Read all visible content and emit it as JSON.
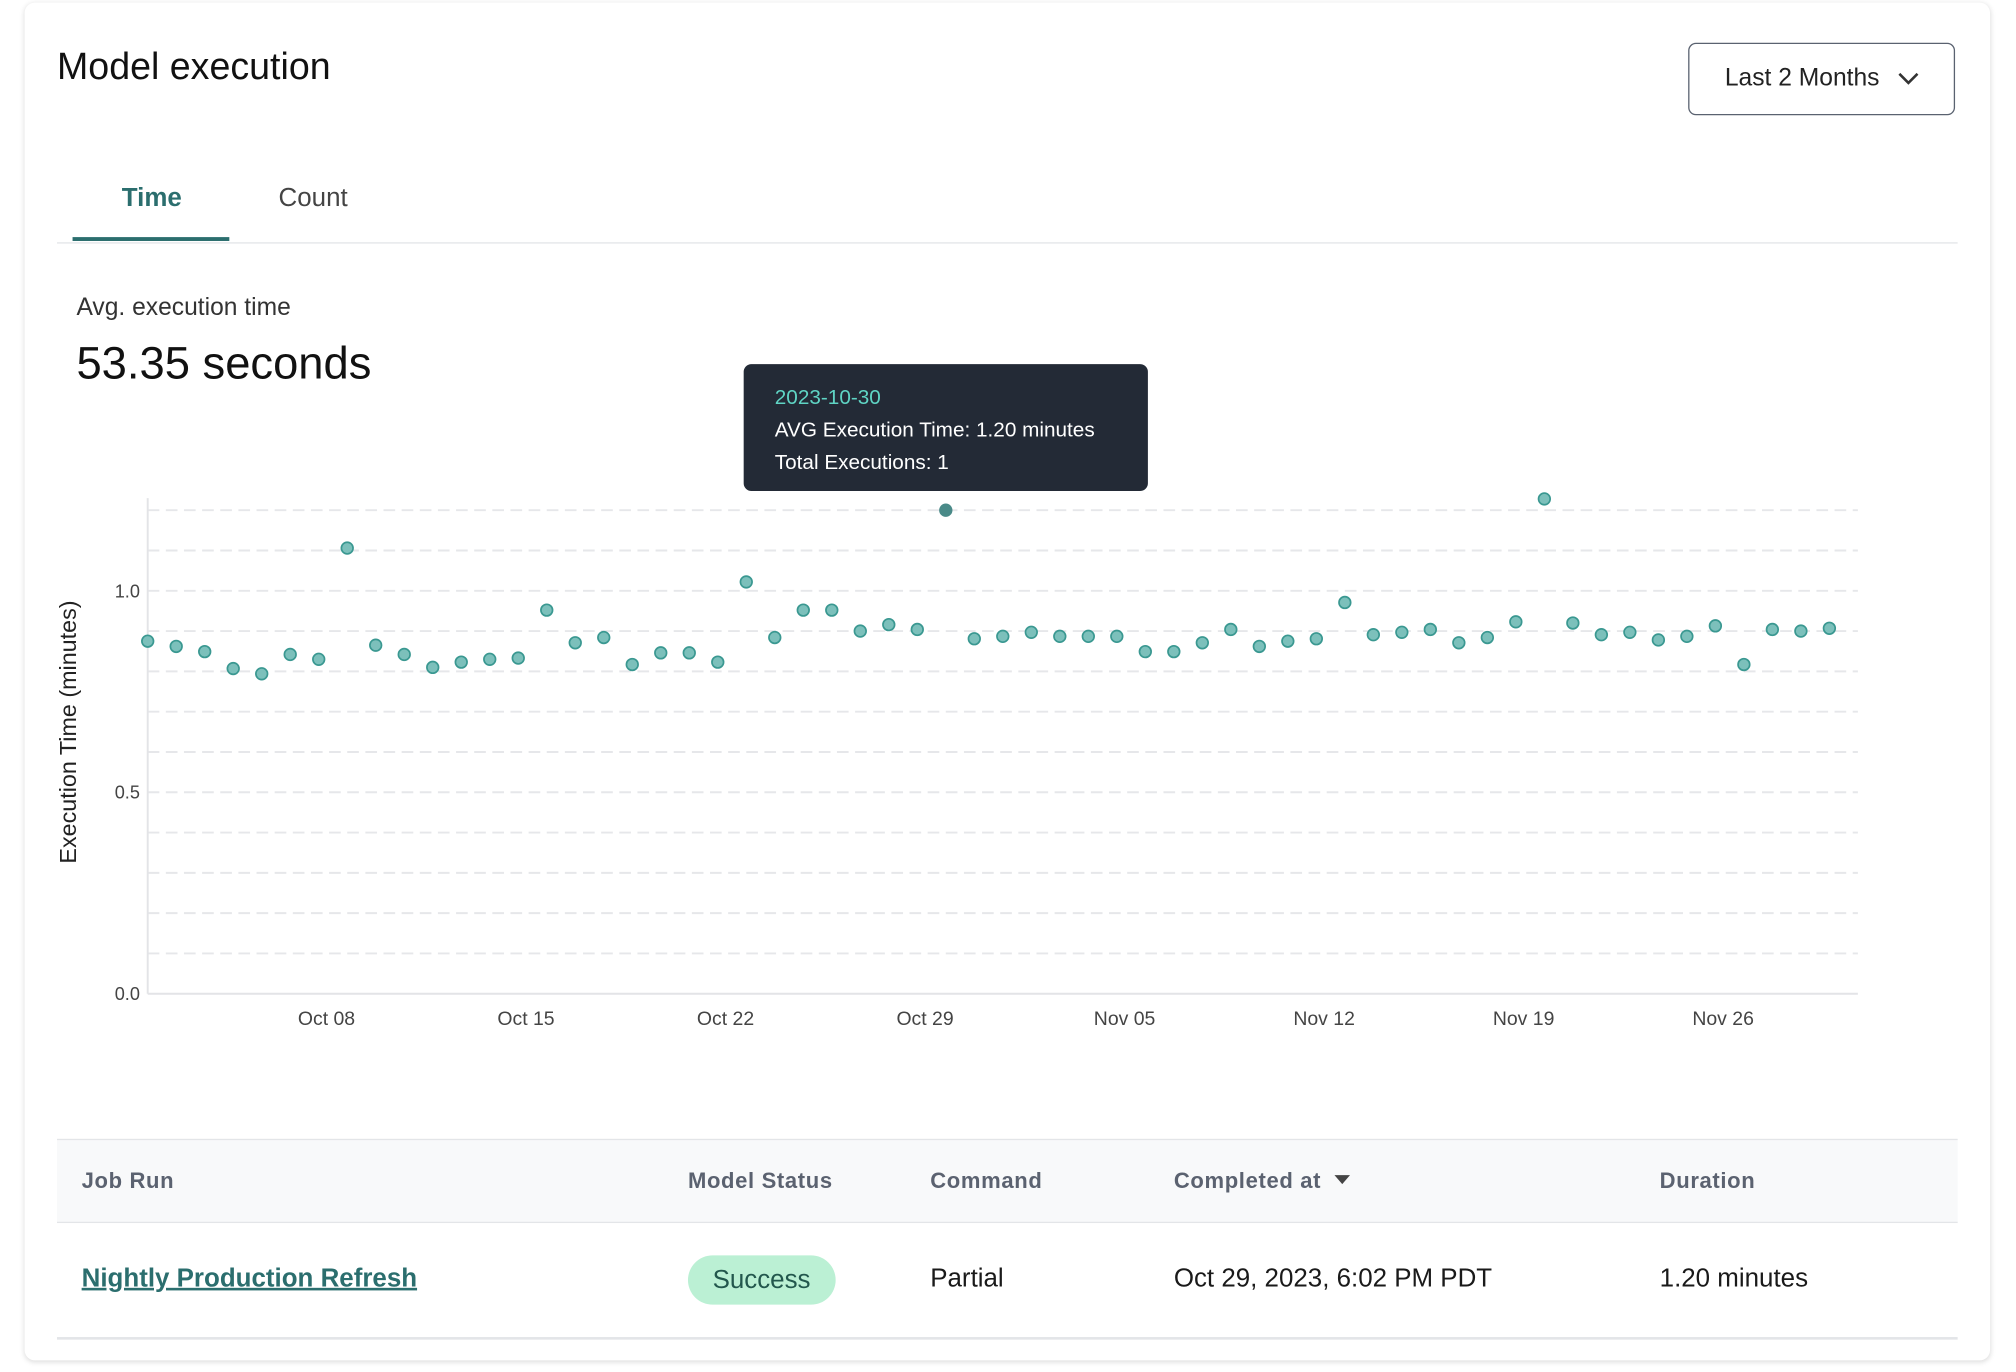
{
  "header": {
    "title": "Model execution",
    "range_select": "Last 2 Months"
  },
  "tabs": [
    {
      "label": "Time",
      "active": true
    },
    {
      "label": "Count",
      "active": false
    }
  ],
  "summary": {
    "label": "Avg. execution time",
    "value": "53.35 seconds"
  },
  "tooltip": {
    "date": "2023-10-30",
    "line1": "AVG Execution Time: 1.20 minutes",
    "line2": "Total Executions: 1"
  },
  "colors": {
    "accent": "#2b6e6e",
    "point_fill": "#7cc0bb",
    "point_stroke": "#3a9891",
    "point_active": "#4a8a88",
    "tooltip_bg": "#232a36"
  },
  "chart_data": {
    "type": "scatter",
    "ylabel": "Execution Time (minutes)",
    "ylim": [
      0,
      1.23
    ],
    "yticks": [
      "0.0",
      "0.5",
      "1.0"
    ],
    "grid": true,
    "xticks": [
      {
        "date": "2023-10-08",
        "label": "Oct 08"
      },
      {
        "date": "2023-10-15",
        "label": "Oct 15"
      },
      {
        "date": "2023-10-22",
        "label": "Oct 22"
      },
      {
        "date": "2023-10-29",
        "label": "Oct 29"
      },
      {
        "date": "2023-11-05",
        "label": "Nov 05"
      },
      {
        "date": "2023-11-12",
        "label": "Nov 12"
      },
      {
        "date": "2023-11-19",
        "label": "Nov 19"
      },
      {
        "date": "2023-11-26",
        "label": "Nov 26"
      }
    ],
    "highlighted": "2023-10-30",
    "points": [
      [
        "2023-10-02",
        0.875
      ],
      [
        "2023-10-03",
        0.862
      ],
      [
        "2023-10-04",
        0.849
      ],
      [
        "2023-10-05",
        0.807
      ],
      [
        "2023-10-06",
        0.794
      ],
      [
        "2023-10-07",
        0.842
      ],
      [
        "2023-10-08",
        0.83
      ],
      [
        "2023-10-09",
        1.106
      ],
      [
        "2023-10-10",
        0.865
      ],
      [
        "2023-10-11",
        0.842
      ],
      [
        "2023-10-12",
        0.81
      ],
      [
        "2023-10-13",
        0.823
      ],
      [
        "2023-10-14",
        0.83
      ],
      [
        "2023-10-15",
        0.833
      ],
      [
        "2023-10-16",
        0.952
      ],
      [
        "2023-10-17",
        0.871
      ],
      [
        "2023-10-18",
        0.884
      ],
      [
        "2023-10-19",
        0.817
      ],
      [
        "2023-10-20",
        0.846
      ],
      [
        "2023-10-21",
        0.846
      ],
      [
        "2023-10-22",
        0.823
      ],
      [
        "2023-10-23",
        1.022
      ],
      [
        "2023-10-24",
        0.884
      ],
      [
        "2023-10-25",
        0.952
      ],
      [
        "2023-10-26",
        0.952
      ],
      [
        "2023-10-27",
        0.9
      ],
      [
        "2023-10-28",
        0.916
      ],
      [
        "2023-10-29",
        0.904
      ],
      [
        "2023-10-30",
        1.2
      ],
      [
        "2023-10-31",
        0.881
      ],
      [
        "2023-11-01",
        0.887
      ],
      [
        "2023-11-02",
        0.897
      ],
      [
        "2023-11-03",
        0.887
      ],
      [
        "2023-11-04",
        0.887
      ],
      [
        "2023-11-05",
        0.887
      ],
      [
        "2023-11-06",
        0.849
      ],
      [
        "2023-11-07",
        0.849
      ],
      [
        "2023-11-08",
        0.871
      ],
      [
        "2023-11-09",
        0.904
      ],
      [
        "2023-11-10",
        0.862
      ],
      [
        "2023-11-11",
        0.875
      ],
      [
        "2023-11-12",
        0.881
      ],
      [
        "2023-11-13",
        0.971
      ],
      [
        "2023-11-14",
        0.891
      ],
      [
        "2023-11-15",
        0.897
      ],
      [
        "2023-11-16",
        0.904
      ],
      [
        "2023-11-17",
        0.871
      ],
      [
        "2023-11-18",
        0.884
      ],
      [
        "2023-11-19",
        0.923
      ],
      [
        "2023-11-20",
        1.228
      ],
      [
        "2023-11-21",
        0.92
      ],
      [
        "2023-11-22",
        0.891
      ],
      [
        "2023-11-23",
        0.897
      ],
      [
        "2023-11-24",
        0.878
      ],
      [
        "2023-11-25",
        0.887
      ],
      [
        "2023-11-26",
        0.913
      ],
      [
        "2023-11-27",
        0.817
      ],
      [
        "2023-11-28",
        0.904
      ],
      [
        "2023-11-29",
        0.9
      ],
      [
        "2023-11-30",
        0.907
      ]
    ]
  },
  "table": {
    "columns": [
      "Job Run",
      "Model Status",
      "Command",
      "Completed at",
      "Duration"
    ],
    "rows": [
      {
        "job_run": "Nightly Production Refresh",
        "status": "Success",
        "command": "Partial",
        "completed_at": "Oct 29, 2023, 6:02 PM PDT",
        "duration": "1.20 minutes"
      }
    ]
  }
}
